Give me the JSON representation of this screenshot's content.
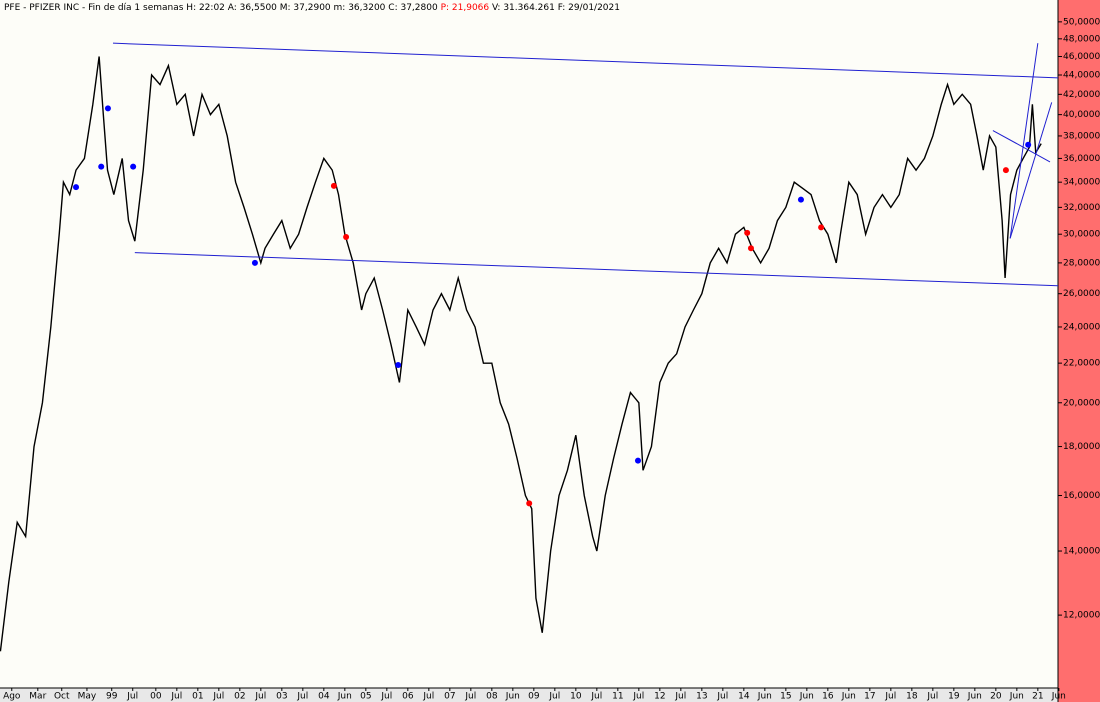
{
  "chart_data": {
    "type": "line",
    "header": {
      "ticker": "PFE - PFIZER INC - Fin de día 1 semanas",
      "hour": "H: 22:02",
      "open": "A: 36,5500",
      "high": "M: 37,2900",
      "low": "m: 36,3200",
      "close": "C: 37,2800",
      "p": "P: 21,9066",
      "volume": "V: 31.364.261",
      "date": "F: 29/01/2021"
    },
    "log_scale": true,
    "xlim": [
      1996.29,
      2021.48
    ],
    "ylim": [
      10.07,
      52.7
    ],
    "yticks": [
      {
        "value": 12,
        "label": "12,0000"
      },
      {
        "value": 14,
        "label": "14,0000"
      },
      {
        "value": 16,
        "label": "16,0000"
      },
      {
        "value": 18,
        "label": "18,0000"
      },
      {
        "value": 20,
        "label": "20,0000"
      },
      {
        "value": 22,
        "label": "22,0000"
      },
      {
        "value": 24,
        "label": "24,0000"
      },
      {
        "value": 26,
        "label": "26,0000"
      },
      {
        "value": 28,
        "label": "28,0000"
      },
      {
        "value": 30,
        "label": "30,0000"
      },
      {
        "value": 32,
        "label": "32,0000"
      },
      {
        "value": 34,
        "label": "34,0000"
      },
      {
        "value": 36,
        "label": "36,0000"
      },
      {
        "value": 38,
        "label": "38,0000"
      },
      {
        "value": 40,
        "label": "40,0000"
      },
      {
        "value": 42,
        "label": "42,0000"
      },
      {
        "value": 44,
        "label": "44,0000"
      },
      {
        "value": 46,
        "label": "46,0000"
      },
      {
        "value": 48,
        "label": "48,0000"
      },
      {
        "value": 50,
        "label": "50,0000"
      }
    ],
    "xticks": [
      {
        "value": 1996.57,
        "label": "Ago"
      },
      {
        "value": 1997.19,
        "label": "Mar"
      },
      {
        "value": 1997.76,
        "label": "Oct"
      },
      {
        "value": 1998.36,
        "label": "May"
      },
      {
        "value": 1998.95,
        "label": "99"
      },
      {
        "value": 1999.45,
        "label": "Jul"
      },
      {
        "value": 2000,
        "label": "00"
      },
      {
        "value": 2000.5,
        "label": "Jul"
      },
      {
        "value": 2001,
        "label": "01"
      },
      {
        "value": 2001.5,
        "label": "Jul"
      },
      {
        "value": 2002,
        "label": "02"
      },
      {
        "value": 2002.5,
        "label": "Jul"
      },
      {
        "value": 2003,
        "label": "03"
      },
      {
        "value": 2003.5,
        "label": "Jul"
      },
      {
        "value": 2004,
        "label": "04"
      },
      {
        "value": 2004.5,
        "label": "Jun"
      },
      {
        "value": 2005,
        "label": "05"
      },
      {
        "value": 2005.5,
        "label": "Jul"
      },
      {
        "value": 2006,
        "label": "06"
      },
      {
        "value": 2006.5,
        "label": "Jul"
      },
      {
        "value": 2007,
        "label": "07"
      },
      {
        "value": 2007.5,
        "label": "Jul"
      },
      {
        "value": 2008,
        "label": "08"
      },
      {
        "value": 2008.5,
        "label": "Jun"
      },
      {
        "value": 2009,
        "label": "09"
      },
      {
        "value": 2009.5,
        "label": "Jul"
      },
      {
        "value": 2010,
        "label": "10"
      },
      {
        "value": 2010.5,
        "label": "Jul"
      },
      {
        "value": 2011,
        "label": "11"
      },
      {
        "value": 2011.5,
        "label": "Jul"
      },
      {
        "value": 2012,
        "label": "12"
      },
      {
        "value": 2012.5,
        "label": "Jul"
      },
      {
        "value": 2013,
        "label": "13"
      },
      {
        "value": 2013.5,
        "label": "Jul"
      },
      {
        "value": 2014,
        "label": "14"
      },
      {
        "value": 2014.5,
        "label": "Jun"
      },
      {
        "value": 2015,
        "label": "15"
      },
      {
        "value": 2015.5,
        "label": "Jun"
      },
      {
        "value": 2016,
        "label": "16"
      },
      {
        "value": 2016.5,
        "label": "Jun"
      },
      {
        "value": 2017,
        "label": "17"
      },
      {
        "value": 2017.5,
        "label": "Jul"
      },
      {
        "value": 2018,
        "label": "18"
      },
      {
        "value": 2018.5,
        "label": "Jul"
      },
      {
        "value": 2019,
        "label": "19"
      },
      {
        "value": 2019.5,
        "label": "Jun"
      },
      {
        "value": 2020,
        "label": "20"
      },
      {
        "value": 2020.5,
        "label": "Jun"
      },
      {
        "value": 2021,
        "label": "21"
      },
      {
        "value": 2021.5,
        "label": "Jun"
      }
    ],
    "x": [
      1996.3,
      1996.5,
      1996.7,
      1996.9,
      1997.1,
      1997.3,
      1997.5,
      1997.7,
      1997.8,
      1997.95,
      1998.1,
      1998.3,
      1998.5,
      1998.65,
      1998.75,
      1998.85,
      1999.0,
      1999.2,
      1999.35,
      1999.5,
      1999.7,
      1999.9,
      2000.1,
      2000.3,
      2000.5,
      2000.7,
      2000.9,
      2001.1,
      2001.3,
      2001.5,
      2001.7,
      2001.9,
      2002.1,
      2002.3,
      2002.5,
      2002.6,
      2002.8,
      2003.0,
      2003.2,
      2003.4,
      2003.6,
      2003.8,
      2004.0,
      2004.2,
      2004.35,
      2004.5,
      2004.7,
      2004.9,
      2005.0,
      2005.2,
      2005.4,
      2005.6,
      2005.8,
      2006.0,
      2006.2,
      2006.4,
      2006.6,
      2006.8,
      2007.0,
      2007.2,
      2007.4,
      2007.6,
      2007.8,
      2008.0,
      2008.2,
      2008.4,
      2008.6,
      2008.8,
      2008.95,
      2009.05,
      2009.2,
      2009.4,
      2009.6,
      2009.8,
      2010.0,
      2010.2,
      2010.4,
      2010.5,
      2010.7,
      2010.9,
      2011.1,
      2011.3,
      2011.5,
      2011.6,
      2011.8,
      2012.0,
      2012.2,
      2012.4,
      2012.6,
      2012.8,
      2013.0,
      2013.2,
      2013.4,
      2013.6,
      2013.8,
      2014.0,
      2014.2,
      2014.4,
      2014.6,
      2014.8,
      2015.0,
      2015.2,
      2015.4,
      2015.6,
      2015.8,
      2016.0,
      2016.2,
      2016.3,
      2016.5,
      2016.7,
      2016.9,
      2017.1,
      2017.3,
      2017.5,
      2017.7,
      2017.9,
      2018.1,
      2018.3,
      2018.5,
      2018.7,
      2018.85,
      2019.0,
      2019.2,
      2019.4,
      2019.55,
      2019.7,
      2019.85,
      2020.0,
      2020.15,
      2020.22,
      2020.35,
      2020.5,
      2020.65,
      2020.8,
      2020.87,
      2020.95,
      2021.08
    ],
    "series": [
      {
        "name": "PFE",
        "color": "#000000",
        "values": [
          11,
          13,
          15,
          14.5,
          18,
          20,
          24,
          30,
          34,
          33,
          35,
          36,
          41,
          46,
          40,
          35,
          33,
          36,
          31,
          29.5,
          35,
          44,
          43,
          45,
          41,
          42,
          38,
          42,
          40,
          41,
          38,
          34,
          32,
          30,
          28,
          29,
          30,
          31,
          29,
          30,
          32,
          34,
          36,
          35,
          33,
          30,
          28,
          25,
          26,
          27,
          25,
          23,
          21,
          25,
          24,
          23,
          25,
          26,
          25,
          27,
          25,
          24,
          22,
          22,
          20,
          19,
          17.5,
          16,
          15.5,
          12.5,
          11.5,
          14,
          16,
          17,
          18.5,
          16,
          14.5,
          14,
          16,
          17.5,
          19,
          20.5,
          20,
          17,
          18,
          21,
          22,
          22.5,
          24,
          25,
          26,
          28,
          29,
          28,
          30,
          30.5,
          29,
          28,
          29,
          31,
          32,
          34,
          33.5,
          33,
          31,
          30,
          28,
          30,
          34,
          33,
          30,
          32,
          33,
          32,
          33,
          36,
          35,
          36,
          38,
          41,
          43,
          41,
          42,
          41,
          38,
          35,
          38,
          37,
          31,
          27,
          33,
          35,
          36,
          37,
          41,
          36.5,
          37.3
        ]
      }
    ],
    "markers": [
      {
        "color": "#0000ff",
        "x": [
          1998.1,
          1998.7,
          1998.86,
          1999.46,
          2002.36,
          2005.77,
          2011.48,
          2015.36,
          2020.77
        ],
        "values": [
          33.6,
          35.3,
          40.6,
          35.3,
          28.0,
          21.9,
          17.4,
          32.6,
          37.2
        ]
      },
      {
        "color": "#ff0000",
        "x": [
          2004.24,
          2004.53,
          2008.89,
          2014.08,
          2014.17,
          2015.84,
          2020.24
        ],
        "values": [
          33.7,
          29.8,
          15.7,
          30.1,
          29.0,
          30.5,
          35.0
        ]
      }
    ],
    "trendlines": {
      "color": "#2020d0",
      "lines": [
        {
          "x": [
            1998.98,
            2021.48
          ],
          "values": [
            47.5,
            43.7
          ]
        },
        {
          "x": [
            1999.5,
            2021.48
          ],
          "values": [
            28.7,
            26.5
          ]
        },
        {
          "x": [
            2020.34,
            2021.0
          ],
          "values": [
            29.7,
            47.5
          ]
        },
        {
          "x": [
            2019.93,
            2021.29
          ],
          "values": [
            38.5,
            35.7
          ]
        },
        {
          "x": [
            2020.34,
            2021.33
          ],
          "values": [
            29.7,
            41.2
          ]
        }
      ]
    }
  }
}
